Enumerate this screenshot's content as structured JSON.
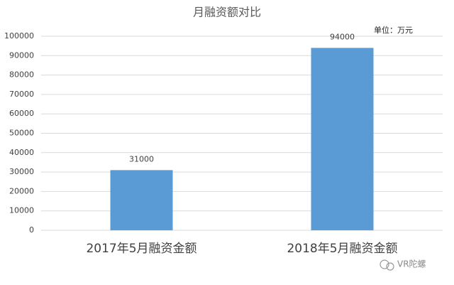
{
  "chart_data": {
    "type": "bar",
    "title": "月融资额对比",
    "unit_note": "单位：万元",
    "watermark": "VR陀螺",
    "categories": [
      "2017年5月融资金额",
      "2018年5月融资金额"
    ],
    "values": [
      31000,
      94000
    ],
    "color": "#5b9bd5",
    "ylim": [
      0,
      100000
    ],
    "yticks": [
      0,
      10000,
      20000,
      30000,
      40000,
      50000,
      60000,
      70000,
      80000,
      90000,
      100000
    ],
    "grid": true
  }
}
